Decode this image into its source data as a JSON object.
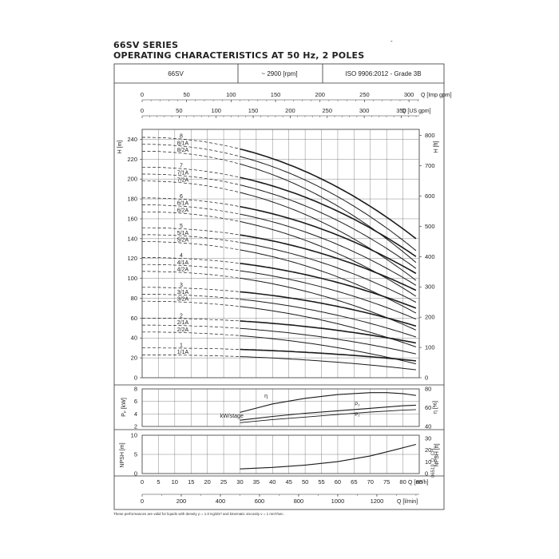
{
  "header": {
    "series": "66SV SERIES",
    "subtitle": "OPERATING CHARACTERISTICS AT 50 Hz, 2 POLES",
    "model": "66SV",
    "speed": "~ 2900 [rpm]",
    "standard": "ISO 9906:2012 - Grade 3B"
  },
  "footnote": "These performances are valid for liquids with density ρ = 1.0 Kg/dm³ and kinematic viscosity ν = 1 mm²/sec.",
  "code": "06519_D_CH",
  "colors": {
    "line": "#1a1a1a",
    "grid": "#555555",
    "frame": "#333333"
  },
  "chart_data": [
    {
      "type": "line",
      "name": "head",
      "x_label_top_imp": "Q [Imp gpm]",
      "x_ticks_top_imp": [
        0,
        50,
        100,
        150,
        200,
        250,
        300
      ],
      "x_label_top_us": "Q [US gpm]",
      "x_ticks_top_us": [
        0,
        50,
        100,
        150,
        200,
        250,
        300,
        350
      ],
      "ylabel": "H [m]",
      "yticks": [
        0,
        20,
        40,
        60,
        80,
        100,
        120,
        140,
        160,
        180,
        200,
        220,
        240
      ],
      "ylim": [
        0,
        250
      ],
      "y2label": "H [ft]",
      "y2ticks": [
        0,
        100,
        200,
        300,
        400,
        500,
        600,
        700,
        800
      ],
      "xlim": [
        0,
        85
      ],
      "dashed_until": 30,
      "series": [
        {
          "name": "8",
          "H0": 242,
          "Hend": 140,
          "Qend": 84
        },
        {
          "name": "8/1A",
          "H0": 235,
          "Hend": 128,
          "Qend": 84
        },
        {
          "name": "8/2A",
          "H0": 228,
          "Hend": 116,
          "Qend": 84
        },
        {
          "name": "7",
          "H0": 212,
          "Hend": 122,
          "Qend": 84
        },
        {
          "name": "7/1A",
          "H0": 205,
          "Hend": 110,
          "Qend": 84
        },
        {
          "name": "7/2A",
          "H0": 198,
          "Hend": 98,
          "Qend": 84
        },
        {
          "name": "6",
          "H0": 181,
          "Hend": 105,
          "Qend": 84
        },
        {
          "name": "6/1A",
          "H0": 174,
          "Hend": 93,
          "Qend": 84
        },
        {
          "name": "6/2A",
          "H0": 167,
          "Hend": 82,
          "Qend": 84
        },
        {
          "name": "5",
          "H0": 151,
          "Hend": 88,
          "Qend": 84
        },
        {
          "name": "5/1A",
          "H0": 144,
          "Hend": 76,
          "Qend": 84
        },
        {
          "name": "5/2A",
          "H0": 137,
          "Hend": 65,
          "Qend": 84
        },
        {
          "name": "4",
          "H0": 121,
          "Hend": 70,
          "Qend": 84
        },
        {
          "name": "4/1A",
          "H0": 114,
          "Hend": 59,
          "Qend": 84
        },
        {
          "name": "4/2A",
          "H0": 107,
          "Hend": 48,
          "Qend": 84
        },
        {
          "name": "3",
          "H0": 91,
          "Hend": 52,
          "Qend": 84
        },
        {
          "name": "3/1A",
          "H0": 84,
          "Hend": 41,
          "Qend": 84
        },
        {
          "name": "3/2A",
          "H0": 77,
          "Hend": 31,
          "Qend": 84
        },
        {
          "name": "2",
          "H0": 60,
          "Hend": 35,
          "Qend": 84
        },
        {
          "name": "2/1A",
          "H0": 53,
          "Hend": 24,
          "Qend": 84
        },
        {
          "name": "2/2A",
          "H0": 46,
          "Hend": 14,
          "Qend": 84
        },
        {
          "name": "1",
          "H0": 30,
          "Hend": 17,
          "Qend": 84
        },
        {
          "name": "1/1A",
          "H0": 23,
          "Hend": 8,
          "Qend": 84
        }
      ]
    },
    {
      "type": "line",
      "name": "power-efficiency",
      "ylabel": "Pₚ [kW]",
      "yticks": [
        2,
        4,
        6,
        8
      ],
      "ylim": [
        2,
        8
      ],
      "y2label": "η [%]",
      "y2ticks": [
        40,
        60,
        80
      ],
      "y2lim": [
        40,
        80
      ],
      "annotations": [
        "η",
        "P₂",
        "P₂",
        "kW/stage"
      ],
      "efficiency": {
        "x": [
          30,
          40,
          50,
          60,
          70,
          75,
          80,
          84
        ],
        "y": [
          55,
          64,
          70,
          74,
          76,
          76,
          75,
          73
        ]
      },
      "power": {
        "x": [
          30,
          40,
          50,
          60,
          70,
          80,
          84
        ],
        "y": [
          3.0,
          3.6,
          4.1,
          4.5,
          4.9,
          5.3,
          5.4
        ]
      },
      "power2": {
        "x": [
          30,
          40,
          50,
          60,
          70,
          80,
          84
        ],
        "y": [
          2.6,
          3.1,
          3.5,
          3.9,
          4.3,
          4.6,
          4.7
        ]
      }
    },
    {
      "type": "line",
      "name": "npsh",
      "ylabel": "NPSH [m]",
      "yticks": [
        0,
        5,
        10
      ],
      "ylim": [
        0,
        10
      ],
      "y2label": "NPSH [ft]",
      "y2ticks": [
        0,
        10,
        20,
        30
      ],
      "xlabel": "Q [m³/h]",
      "xticks": [
        0,
        5,
        10,
        15,
        20,
        25,
        30,
        35,
        40,
        45,
        50,
        55,
        60,
        65,
        70,
        75,
        80,
        85
      ],
      "x2label": "Q [l/min]",
      "x2ticks": [
        0,
        200,
        400,
        600,
        800,
        1000,
        1200
      ],
      "npsh": {
        "x": [
          30,
          40,
          50,
          60,
          70,
          78,
          84
        ],
        "y": [
          1.2,
          1.6,
          2.2,
          3.1,
          4.6,
          6.3,
          7.6
        ]
      }
    }
  ]
}
